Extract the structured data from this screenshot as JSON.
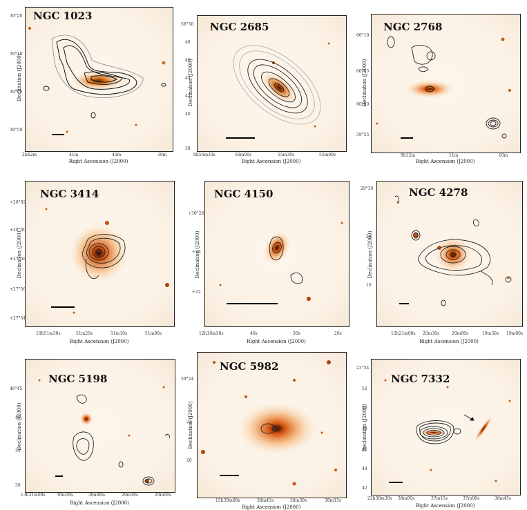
{
  "panels": [
    {
      "name": "NGC 1023",
      "ylabel": "Declination (J2000)",
      "xlabel": "Right Ascension (J2000)",
      "yticks": [
        "39°20",
        "39°10",
        "39°00",
        "38°50"
      ],
      "xticks": [
        "2h42m",
        "41m",
        "40m",
        "39m"
      ]
    },
    {
      "name": "NGC 2685",
      "ylabel": "Declination (J2000)",
      "xlabel": "Right Ascension (J2000)",
      "yticks": [
        "58°50",
        "48",
        "46",
        "44",
        "42",
        "40",
        "38"
      ],
      "xticks": [
        "8h56m30s",
        "56m00s",
        "55m30s",
        "55m00s"
      ]
    },
    {
      "name": "NGC 2768",
      "ylabel": "Declination (J2000)",
      "xlabel": "Right Ascension (J2000)",
      "yticks": [
        "60°10",
        "60°05",
        "60°00",
        "59°55"
      ],
      "xticks": [
        "9h12m",
        "11m",
        "10m"
      ]
    },
    {
      "name": "NGC 3414",
      "ylabel": "Declination (J2000)",
      "xlabel": "Right Ascension (J2000)",
      "yticks": [
        "+28°02",
        "+28°00",
        "+27°58",
        "+27°56",
        "+27°54"
      ],
      "xticks": [
        "10h51m30s",
        "51m20s",
        "51m10s",
        "51m00s"
      ]
    },
    {
      "name": "NGC 4150",
      "ylabel": "Declination (J2000)",
      "xlabel": "Right Ascension (J2000)",
      "yticks": [
        "+30°26",
        "+24",
        "+22"
      ],
      "xticks": [
        "12h10m50s",
        "40s",
        "30s",
        "20s"
      ]
    },
    {
      "name": "NGC 4278",
      "ylabel": "Declination (J2000)",
      "xlabel": "Right Ascension (J2000)",
      "yticks": [
        "29°30",
        "20",
        "10"
      ],
      "xticks": [
        "12h21m00s",
        "20m30s",
        "20m00s",
        "19m30s",
        "19m00s"
      ]
    },
    {
      "name": "NGC 5198",
      "ylabel": "Declination (J2000)",
      "xlabel": "Right Ascension (J2000)",
      "yticks": [
        "46°45",
        "40",
        "35",
        "30"
      ],
      "xticks": [
        "13h31m00s",
        "30m30s",
        "30m00s",
        "29m30s",
        "29m00s"
      ]
    },
    {
      "name": "NGC 5982",
      "ylabel": "Declination (J2000)",
      "xlabel": "Right Ascension (J2000)",
      "yticks": [
        "59°24",
        "22",
        "20"
      ],
      "xticks": [
        "15h39m00s",
        "38m45s",
        "38m30s",
        "38m15s"
      ]
    },
    {
      "name": "NGC 7332",
      "ylabel": "Declination (J2000)",
      "xlabel": "Right Ascension (J2000)",
      "yticks": [
        "23°54",
        "52",
        "50",
        "48",
        "46",
        "44",
        "42"
      ],
      "xticks": [
        "22h38m30s",
        "38m00s",
        "37m15s",
        "37m00s",
        "36m45s"
      ]
    }
  ]
}
